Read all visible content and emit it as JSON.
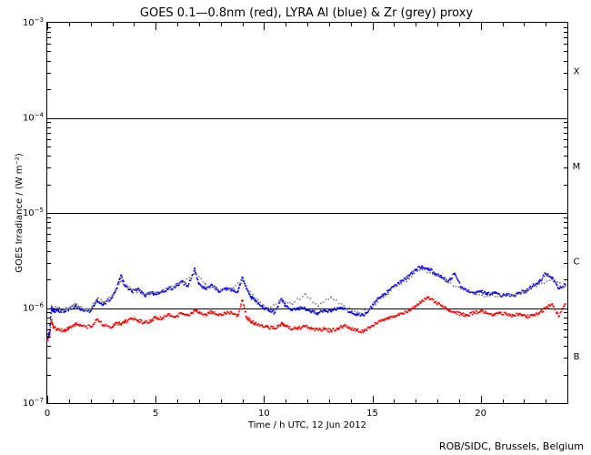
{
  "chart_data": {
    "type": "scatter",
    "title": "GOES 0.1—0.8nm (red), LYRA Al (blue) & Zr (grey) proxy",
    "xlabel": "Time / h UTC, 12 Jun 2012",
    "ylabel": "GOES Irradiance / (W m⁻²)",
    "xlim": [
      0,
      24
    ],
    "ylim": [
      1e-07,
      0.001
    ],
    "yscale": "log",
    "x_ticks": [
      0,
      5,
      10,
      15,
      20
    ],
    "y_ticks": [
      {
        "value": 1e-07,
        "base": "10",
        "exp": "−7"
      },
      {
        "value": 1e-06,
        "base": "10",
        "exp": "−6"
      },
      {
        "value": 1e-05,
        "base": "10",
        "exp": "−5"
      },
      {
        "value": 0.0001,
        "base": "10",
        "exp": "−4"
      },
      {
        "value": 0.001,
        "base": "10",
        "exp": "−3"
      }
    ],
    "class_lines": [
      1e-06,
      1e-05,
      0.0001
    ],
    "flare_classes": [
      {
        "label": "B",
        "value": 3.16e-07
      },
      {
        "label": "C",
        "value": 3.16e-06
      },
      {
        "label": "M",
        "value": 3.16e-05
      },
      {
        "label": "X",
        "value": 0.000316
      }
    ],
    "series": [
      {
        "color": "#ff0000",
        "x": [
          0.0,
          0.1,
          0.2,
          0.3,
          0.5,
          0.8,
          1.0,
          1.3,
          1.6,
          2.0,
          2.3,
          2.6,
          3.0,
          3.2,
          3.4,
          3.6,
          3.9,
          4.2,
          4.5,
          4.8,
          5.0,
          5.3,
          5.6,
          5.9,
          6.2,
          6.5,
          6.8,
          7.0,
          7.3,
          7.6,
          7.9,
          8.2,
          8.5,
          8.8,
          9.0,
          9.2,
          9.4,
          9.6,
          9.9,
          10.2,
          10.5,
          10.8,
          11.0,
          11.3,
          11.6,
          11.9,
          12.2,
          12.5,
          12.8,
          13.1,
          13.4,
          13.7,
          14.0,
          14.3,
          14.6,
          14.9,
          15.2,
          15.5,
          15.8,
          16.1,
          16.4,
          16.7,
          17.0,
          17.3,
          17.6,
          17.9,
          18.2,
          18.5,
          18.8,
          19.1,
          19.4,
          19.7,
          20.0,
          20.3,
          20.6,
          20.9,
          21.2,
          21.5,
          21.8,
          22.1,
          22.4,
          22.7,
          23.0,
          23.3,
          23.6,
          23.9
        ],
        "values": [
          4.6e-07,
          5.2e-07,
          7.5e-07,
          6.2e-07,
          6e-07,
          5.7e-07,
          6.2e-07,
          6.8e-07,
          6.5e-07,
          6.3e-07,
          7.6e-07,
          6.6e-07,
          6.3e-07,
          7e-07,
          6.8e-07,
          7.2e-07,
          7.7e-07,
          7.4e-07,
          7e-07,
          7.3e-07,
          8e-07,
          7.7e-07,
          8.5e-07,
          8.1e-07,
          8.8e-07,
          8.4e-07,
          9.5e-07,
          8.9e-07,
          8.6e-07,
          9.2e-07,
          8.4e-07,
          8.8e-07,
          9e-07,
          8.4e-07,
          1.2e-06,
          8e-07,
          7.2e-07,
          6.9e-07,
          6.6e-07,
          6.3e-07,
          6.1e-07,
          6.8e-07,
          6.5e-07,
          6e-07,
          6.2e-07,
          6.4e-07,
          6.1e-07,
          5.9e-07,
          6e-07,
          5.8e-07,
          6.1e-07,
          6.5e-07,
          6e-07,
          5.8e-07,
          5.7e-07,
          6.2e-07,
          6.9e-07,
          7.4e-07,
          7.8e-07,
          8.3e-07,
          8.8e-07,
          9.4e-07,
          1.05e-06,
          1.2e-06,
          1.3e-06,
          1.15e-06,
          1.05e-06,
          9.6e-07,
          9e-07,
          8.6e-07,
          8.4e-07,
          8.9e-07,
          9.3e-07,
          8.8e-07,
          8.5e-07,
          8.9e-07,
          8.6e-07,
          8.3e-07,
          8.7e-07,
          8.1e-07,
          8.5e-07,
          8.8e-07,
          1e-06,
          1.1e-06,
          8.2e-07,
          1.1e-06
        ]
      },
      {
        "color": "#0000ff",
        "x": [
          0.0,
          0.1,
          0.2,
          0.3,
          0.5,
          0.8,
          1.0,
          1.3,
          1.6,
          2.0,
          2.3,
          2.6,
          3.0,
          3.2,
          3.4,
          3.6,
          3.9,
          4.2,
          4.5,
          4.8,
          5.0,
          5.3,
          5.6,
          5.9,
          6.2,
          6.5,
          6.8,
          7.0,
          7.3,
          7.6,
          7.9,
          8.2,
          8.5,
          8.8,
          9.0,
          9.2,
          9.4,
          9.6,
          9.9,
          10.2,
          10.5,
          10.8,
          11.0,
          11.3,
          11.6,
          11.9,
          12.2,
          12.5,
          12.8,
          13.1,
          13.4,
          13.7,
          14.0,
          14.3,
          14.6,
          14.9,
          15.2,
          15.5,
          15.8,
          16.1,
          16.4,
          16.7,
          17.0,
          17.3,
          17.6,
          17.9,
          18.2,
          18.5,
          18.8,
          19.1,
          19.4,
          19.7,
          20.0,
          20.3,
          20.6,
          20.9,
          21.2,
          21.5,
          21.8,
          22.1,
          22.4,
          22.7,
          23.0,
          23.3,
          23.6,
          23.9
        ],
        "values": [
          4.9e-07,
          5.5e-07,
          1e-06,
          9.2e-07,
          9.5e-07,
          9.2e-07,
          9.8e-07,
          1.05e-06,
          9.6e-07,
          9.3e-07,
          1.2e-06,
          1.1e-06,
          1.3e-06,
          1.6e-06,
          2.2e-06,
          1.7e-06,
          1.5e-06,
          1.6e-06,
          1.35e-06,
          1.45e-06,
          1.4e-06,
          1.5e-06,
          1.6e-06,
          1.65e-06,
          1.9e-06,
          1.7e-06,
          2.6e-06,
          1.8e-06,
          1.6e-06,
          1.75e-06,
          1.5e-06,
          1.6e-06,
          1.55e-06,
          1.5e-06,
          2.1e-06,
          1.6e-06,
          1.3e-06,
          1.2e-06,
          1.05e-06,
          9.5e-07,
          9e-07,
          1.25e-06,
          1.05e-06,
          9.5e-07,
          1e-06,
          9.8e-07,
          9.2e-07,
          8.8e-07,
          9.5e-07,
          9.2e-07,
          1e-06,
          9.8e-07,
          9e-07,
          8.6e-07,
          8.4e-07,
          9.8e-07,
          1.2e-06,
          1.35e-06,
          1.55e-06,
          1.75e-06,
          1.95e-06,
          2.2e-06,
          2.5e-06,
          2.75e-06,
          2.6e-06,
          2.3e-06,
          2.1e-06,
          1.9e-06,
          2.3e-06,
          1.65e-06,
          1.5e-06,
          1.45e-06,
          1.5e-06,
          1.4e-06,
          1.45e-06,
          1.35e-06,
          1.4e-06,
          1.35e-06,
          1.45e-06,
          1.5e-06,
          1.7e-06,
          1.9e-06,
          2.3e-06,
          2.1e-06,
          1.6e-06,
          1.75e-06
        ]
      },
      {
        "color": "#808080",
        "x": [
          0.2,
          0.5,
          0.8,
          1.0,
          1.3,
          1.6,
          2.0,
          2.3,
          2.6,
          3.0,
          3.4,
          3.9,
          4.5,
          5.0,
          5.6,
          6.2,
          6.8,
          7.3,
          7.9,
          8.5,
          9.0,
          9.6,
          10.2,
          10.8,
          11.3,
          11.9,
          12.5,
          13.1,
          13.7,
          14.3,
          14.9,
          15.5,
          16.1,
          16.7,
          17.3,
          17.9,
          18.5,
          19.1,
          19.7,
          20.3,
          20.9,
          21.5,
          22.1,
          22.7,
          23.3,
          23.9
        ],
        "values": [
          1.05e-06,
          1e-06,
          9.6e-07,
          1e-06,
          1.1e-06,
          1e-06,
          9.8e-07,
          1.25e-06,
          1.15e-06,
          1.35e-06,
          1.9e-06,
          1.55e-06,
          1.4e-06,
          1.45e-06,
          1.65e-06,
          1.85e-06,
          2.3e-06,
          1.8e-06,
          1.55e-06,
          1.6e-06,
          1.95e-06,
          1.25e-06,
          1e-06,
          1.2e-06,
          1.1e-06,
          1.4e-06,
          1.05e-06,
          1.3e-06,
          1.05e-06,
          9e-07,
          1e-06,
          1.3e-06,
          1.7e-06,
          2.05e-06,
          2.55e-06,
          2.2e-06,
          1.85e-06,
          1.6e-06,
          1.4e-06,
          1.35e-06,
          1.35e-06,
          1.35e-06,
          1.45e-06,
          1.8e-06,
          2e-06,
          1.7e-06
        ]
      }
    ],
    "credit": "ROB/SIDC, Brussels, Belgium"
  }
}
